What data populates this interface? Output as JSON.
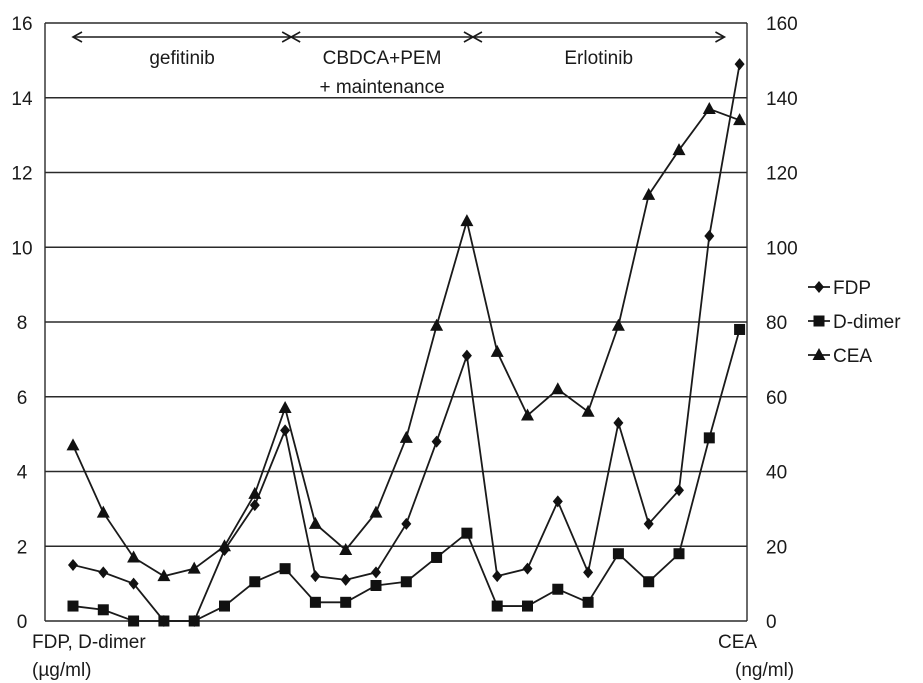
{
  "chart_data": {
    "type": "line",
    "title": "",
    "y_left": {
      "label_line1": "FDP, D-dimer",
      "label_line2": "(µg/ml)",
      "ylim": [
        0,
        16
      ],
      "ticks": [
        "0",
        "2",
        "4",
        "6",
        "8",
        "10",
        "12",
        "14",
        "16"
      ]
    },
    "y_right": {
      "label_line1": "CEA",
      "label_line2": "(ng/ml)",
      "ylim": [
        0,
        160
      ],
      "ticks": [
        "0",
        "20",
        "40",
        "60",
        "80",
        "100",
        "120",
        "140",
        "160"
      ]
    },
    "grid": true,
    "legend_position": "right",
    "x_count": 23,
    "series": [
      {
        "name": "FDP",
        "marker": "diamond",
        "axis": "left",
        "values": [
          1.5,
          1.3,
          1.0,
          0.0,
          0.0,
          1.9,
          3.1,
          5.1,
          1.2,
          1.1,
          1.3,
          2.6,
          4.8,
          7.1,
          1.2,
          1.4,
          3.2,
          1.3,
          5.3,
          2.6,
          3.5,
          10.3,
          14.9
        ]
      },
      {
        "name": "D-dimer",
        "marker": "square",
        "axis": "left",
        "values": [
          0.4,
          0.3,
          0.0,
          0.0,
          0.0,
          0.4,
          1.05,
          1.4,
          0.5,
          0.5,
          0.95,
          1.05,
          1.7,
          2.35,
          0.4,
          0.4,
          0.85,
          0.5,
          1.8,
          1.05,
          1.8,
          4.9,
          7.8
        ]
      },
      {
        "name": "CEA",
        "marker": "triangle",
        "axis": "right",
        "values": [
          47,
          29,
          17,
          12,
          14,
          20,
          34,
          57,
          26,
          19,
          29,
          49,
          79,
          107,
          72,
          55,
          62,
          56,
          79,
          114,
          126,
          137,
          134
        ]
      }
    ],
    "annotations": [
      {
        "label": "gefitinib",
        "line2": "",
        "start_index": 0,
        "end_index": 7.2
      },
      {
        "label": "CBDCA+PEM",
        "line2": "+ maintenance",
        "start_index": 7.2,
        "end_index": 13.2
      },
      {
        "label": "Erlotinib",
        "line2": "",
        "start_index": 13.2,
        "end_index": 21.5
      }
    ]
  }
}
